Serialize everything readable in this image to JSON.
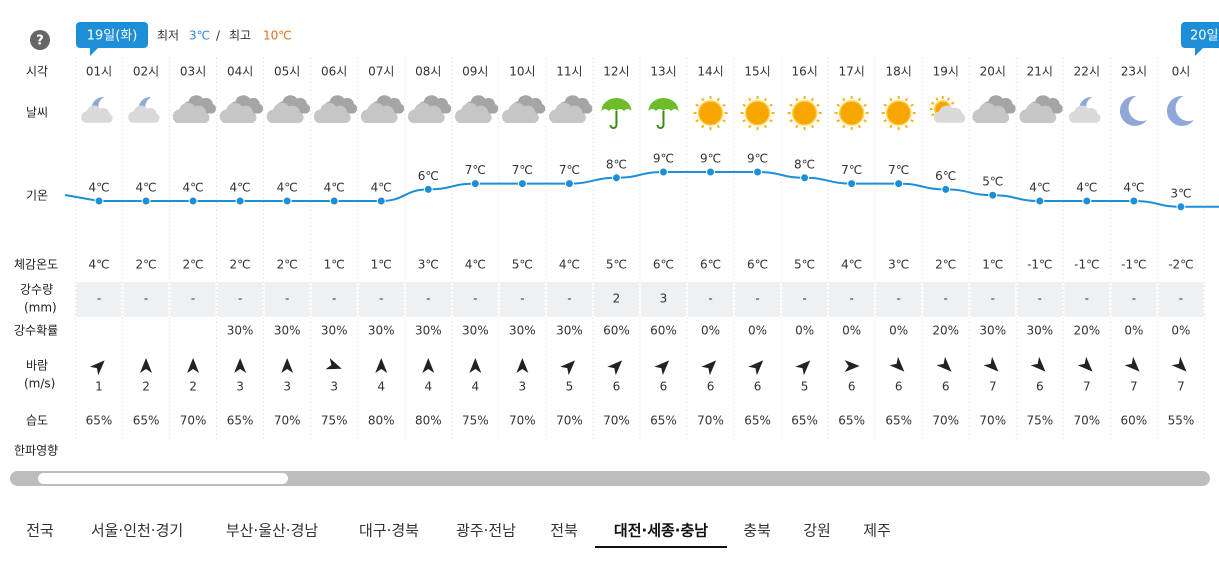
{
  "help": "?",
  "header": {
    "date_badge": "19일(화)",
    "min_label": "최저",
    "min_value": "3℃",
    "separator": "/",
    "max_label": "최고",
    "max_value": "10℃",
    "next_badge": "20일"
  },
  "row_labels": {
    "time": "시각",
    "weather": "날씨",
    "temperature": "기온",
    "feels_like": "체감온도",
    "precipitation": [
      "강수량",
      "(mm)"
    ],
    "precip_probability": "강수확률",
    "wind": [
      "바람",
      "(m/s)"
    ],
    "humidity": "습도",
    "cold_wave": "한파영향"
  },
  "hours": [
    "01시",
    "02시",
    "03시",
    "04시",
    "05시",
    "06시",
    "07시",
    "08시",
    "09시",
    "10시",
    "11시",
    "12시",
    "13시",
    "14시",
    "15시",
    "16시",
    "17시",
    "18시",
    "19시",
    "20시",
    "21시",
    "22시",
    "23시",
    "0시"
  ],
  "temperature": {
    "values": [
      4,
      4,
      4,
      4,
      4,
      4,
      4,
      6,
      7,
      7,
      7,
      8,
      9,
      9,
      9,
      8,
      7,
      7,
      6,
      5,
      4,
      4,
      4,
      3
    ],
    "value_labels": [
      "4℃",
      "4℃",
      "4℃",
      "4℃",
      "4℃",
      "4℃",
      "4℃",
      "6℃",
      "7℃",
      "7℃",
      "7℃",
      "8℃",
      "9℃",
      "9℃",
      "9℃",
      "8℃",
      "7℃",
      "7℃",
      "6℃",
      "5℃",
      "4℃",
      "4℃",
      "4℃",
      "3℃"
    ]
  },
  "feels_like": [
    "4℃",
    "2℃",
    "2℃",
    "2℃",
    "2℃",
    "1℃",
    "1℃",
    "3℃",
    "4℃",
    "5℃",
    "4℃",
    "5℃",
    "6℃",
    "6℃",
    "6℃",
    "5℃",
    "4℃",
    "3℃",
    "2℃",
    "1℃",
    "-1℃",
    "-1℃",
    "-1℃",
    "-2℃"
  ],
  "precipitation": [
    "-",
    "-",
    "-",
    "-",
    "-",
    "-",
    "-",
    "-",
    "-",
    "-",
    "-",
    "2",
    "3",
    "-",
    "-",
    "-",
    "-",
    "-",
    "-",
    "-",
    "-",
    "-",
    "-",
    "-"
  ],
  "precip_probability": [
    null,
    null,
    null,
    "30%",
    "30%",
    "30%",
    "30%",
    "30%",
    "30%",
    "30%",
    "30%",
    "60%",
    "60%",
    "0%",
    "0%",
    "0%",
    "0%",
    "0%",
    "20%",
    "30%",
    "30%",
    "20%",
    "0%",
    "0%"
  ],
  "wind_speed": [
    1,
    2,
    2,
    3,
    3,
    3,
    4,
    4,
    4,
    3,
    5,
    6,
    6,
    6,
    6,
    5,
    6,
    6,
    6,
    7,
    6,
    7,
    7,
    7
  ],
  "humidity": [
    "65%",
    "65%",
    "70%",
    "65%",
    "70%",
    "75%",
    "80%",
    "80%",
    "75%",
    "70%",
    "70%",
    "70%",
    "65%",
    "70%",
    "65%",
    "65%",
    "65%",
    "65%",
    "70%",
    "70%",
    "75%",
    "70%",
    "60%",
    "55%"
  ],
  "tabs": [
    "전국",
    "서울·인천·경기",
    "부산·울산·경남",
    "대구·경북",
    "광주·전남",
    "전북",
    "대전·세종·충남",
    "충북",
    "강원",
    "제주"
  ],
  "active_tab": 6
}
